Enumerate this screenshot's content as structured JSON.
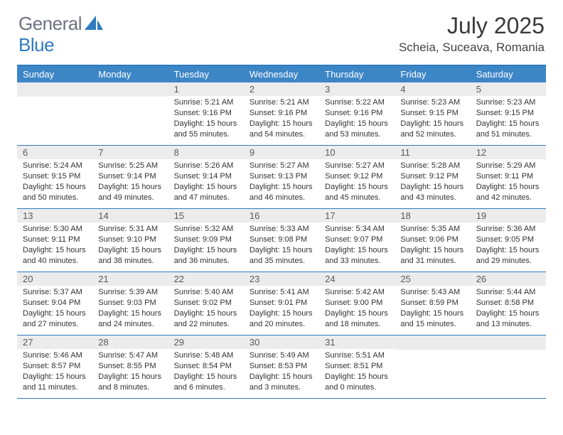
{
  "brand": {
    "part1": "General",
    "part2": "Blue",
    "accent_color": "#2f7bbf",
    "muted_color": "#6b7280"
  },
  "title": "July 2025",
  "location": "Scheia, Suceava, Romania",
  "colors": {
    "header_bar": "#3d86c6",
    "header_border": "#2f7bbf",
    "daynum_bg": "#ececec",
    "text": "#333333",
    "white": "#ffffff"
  },
  "weekdays": [
    "Sunday",
    "Monday",
    "Tuesday",
    "Wednesday",
    "Thursday",
    "Friday",
    "Saturday"
  ],
  "layout": {
    "columns": 7,
    "rows": 5,
    "cell_fontsize": 11,
    "weekday_fontsize": 13
  },
  "weeks": [
    [
      null,
      null,
      {
        "n": "1",
        "sunrise": "Sunrise: 5:21 AM",
        "sunset": "Sunset: 9:16 PM",
        "daylight": "Daylight: 15 hours and 55 minutes."
      },
      {
        "n": "2",
        "sunrise": "Sunrise: 5:21 AM",
        "sunset": "Sunset: 9:16 PM",
        "daylight": "Daylight: 15 hours and 54 minutes."
      },
      {
        "n": "3",
        "sunrise": "Sunrise: 5:22 AM",
        "sunset": "Sunset: 9:16 PM",
        "daylight": "Daylight: 15 hours and 53 minutes."
      },
      {
        "n": "4",
        "sunrise": "Sunrise: 5:23 AM",
        "sunset": "Sunset: 9:15 PM",
        "daylight": "Daylight: 15 hours and 52 minutes."
      },
      {
        "n": "5",
        "sunrise": "Sunrise: 5:23 AM",
        "sunset": "Sunset: 9:15 PM",
        "daylight": "Daylight: 15 hours and 51 minutes."
      }
    ],
    [
      {
        "n": "6",
        "sunrise": "Sunrise: 5:24 AM",
        "sunset": "Sunset: 9:15 PM",
        "daylight": "Daylight: 15 hours and 50 minutes."
      },
      {
        "n": "7",
        "sunrise": "Sunrise: 5:25 AM",
        "sunset": "Sunset: 9:14 PM",
        "daylight": "Daylight: 15 hours and 49 minutes."
      },
      {
        "n": "8",
        "sunrise": "Sunrise: 5:26 AM",
        "sunset": "Sunset: 9:14 PM",
        "daylight": "Daylight: 15 hours and 47 minutes."
      },
      {
        "n": "9",
        "sunrise": "Sunrise: 5:27 AM",
        "sunset": "Sunset: 9:13 PM",
        "daylight": "Daylight: 15 hours and 46 minutes."
      },
      {
        "n": "10",
        "sunrise": "Sunrise: 5:27 AM",
        "sunset": "Sunset: 9:12 PM",
        "daylight": "Daylight: 15 hours and 45 minutes."
      },
      {
        "n": "11",
        "sunrise": "Sunrise: 5:28 AM",
        "sunset": "Sunset: 9:12 PM",
        "daylight": "Daylight: 15 hours and 43 minutes."
      },
      {
        "n": "12",
        "sunrise": "Sunrise: 5:29 AM",
        "sunset": "Sunset: 9:11 PM",
        "daylight": "Daylight: 15 hours and 42 minutes."
      }
    ],
    [
      {
        "n": "13",
        "sunrise": "Sunrise: 5:30 AM",
        "sunset": "Sunset: 9:11 PM",
        "daylight": "Daylight: 15 hours and 40 minutes."
      },
      {
        "n": "14",
        "sunrise": "Sunrise: 5:31 AM",
        "sunset": "Sunset: 9:10 PM",
        "daylight": "Daylight: 15 hours and 38 minutes."
      },
      {
        "n": "15",
        "sunrise": "Sunrise: 5:32 AM",
        "sunset": "Sunset: 9:09 PM",
        "daylight": "Daylight: 15 hours and 36 minutes."
      },
      {
        "n": "16",
        "sunrise": "Sunrise: 5:33 AM",
        "sunset": "Sunset: 9:08 PM",
        "daylight": "Daylight: 15 hours and 35 minutes."
      },
      {
        "n": "17",
        "sunrise": "Sunrise: 5:34 AM",
        "sunset": "Sunset: 9:07 PM",
        "daylight": "Daylight: 15 hours and 33 minutes."
      },
      {
        "n": "18",
        "sunrise": "Sunrise: 5:35 AM",
        "sunset": "Sunset: 9:06 PM",
        "daylight": "Daylight: 15 hours and 31 minutes."
      },
      {
        "n": "19",
        "sunrise": "Sunrise: 5:36 AM",
        "sunset": "Sunset: 9:05 PM",
        "daylight": "Daylight: 15 hours and 29 minutes."
      }
    ],
    [
      {
        "n": "20",
        "sunrise": "Sunrise: 5:37 AM",
        "sunset": "Sunset: 9:04 PM",
        "daylight": "Daylight: 15 hours and 27 minutes."
      },
      {
        "n": "21",
        "sunrise": "Sunrise: 5:39 AM",
        "sunset": "Sunset: 9:03 PM",
        "daylight": "Daylight: 15 hours and 24 minutes."
      },
      {
        "n": "22",
        "sunrise": "Sunrise: 5:40 AM",
        "sunset": "Sunset: 9:02 PM",
        "daylight": "Daylight: 15 hours and 22 minutes."
      },
      {
        "n": "23",
        "sunrise": "Sunrise: 5:41 AM",
        "sunset": "Sunset: 9:01 PM",
        "daylight": "Daylight: 15 hours and 20 minutes."
      },
      {
        "n": "24",
        "sunrise": "Sunrise: 5:42 AM",
        "sunset": "Sunset: 9:00 PM",
        "daylight": "Daylight: 15 hours and 18 minutes."
      },
      {
        "n": "25",
        "sunrise": "Sunrise: 5:43 AM",
        "sunset": "Sunset: 8:59 PM",
        "daylight": "Daylight: 15 hours and 15 minutes."
      },
      {
        "n": "26",
        "sunrise": "Sunrise: 5:44 AM",
        "sunset": "Sunset: 8:58 PM",
        "daylight": "Daylight: 15 hours and 13 minutes."
      }
    ],
    [
      {
        "n": "27",
        "sunrise": "Sunrise: 5:46 AM",
        "sunset": "Sunset: 8:57 PM",
        "daylight": "Daylight: 15 hours and 11 minutes."
      },
      {
        "n": "28",
        "sunrise": "Sunrise: 5:47 AM",
        "sunset": "Sunset: 8:55 PM",
        "daylight": "Daylight: 15 hours and 8 minutes."
      },
      {
        "n": "29",
        "sunrise": "Sunrise: 5:48 AM",
        "sunset": "Sunset: 8:54 PM",
        "daylight": "Daylight: 15 hours and 6 minutes."
      },
      {
        "n": "30",
        "sunrise": "Sunrise: 5:49 AM",
        "sunset": "Sunset: 8:53 PM",
        "daylight": "Daylight: 15 hours and 3 minutes."
      },
      {
        "n": "31",
        "sunrise": "Sunrise: 5:51 AM",
        "sunset": "Sunset: 8:51 PM",
        "daylight": "Daylight: 15 hours and 0 minutes."
      },
      null,
      null
    ]
  ]
}
